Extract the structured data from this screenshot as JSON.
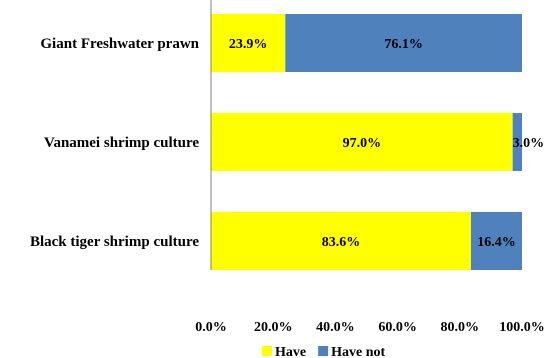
{
  "chart_data": {
    "type": "bar",
    "orientation": "horizontal",
    "stacked": "percent",
    "categories": [
      "Giant Freshwater prawn",
      "Vanamei shrimp culture",
      "Black tiger shrimp culture"
    ],
    "series": [
      {
        "name": "Have",
        "values": [
          23.9,
          97.0,
          83.6
        ],
        "labels": [
          "23.9%",
          "97.0%",
          "83.6%"
        ],
        "color": "#FFFF00"
      },
      {
        "name": "Have not",
        "values": [
          76.1,
          3.0,
          16.4
        ],
        "labels": [
          "76.1%",
          "3.0%",
          "16.4%"
        ],
        "color": "#4F81BD"
      }
    ],
    "xlim": [
      0,
      100
    ],
    "xticks": [
      0,
      20,
      40,
      60,
      80,
      100
    ],
    "xtick_labels": [
      "0.0%",
      "20.0%",
      "40.0%",
      "60.0%",
      "80.0%",
      "100.0%"
    ],
    "grid": false,
    "legend_position": "bottom-center",
    "title": "",
    "xlabel": "",
    "ylabel": ""
  }
}
